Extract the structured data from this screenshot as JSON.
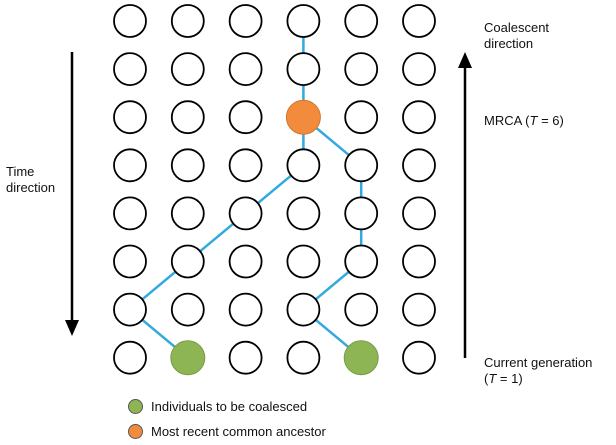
{
  "labels": {
    "time_line1": "Time",
    "time_line2": "direction",
    "coalescent_line1": "Coalescent",
    "coalescent_line2": "direction",
    "mrca_prefix": "MRCA (",
    "mrca_var": "T",
    "mrca_suffix": " = 6)",
    "current_line1": "Current generation",
    "current_open": "(",
    "current_var": "T",
    "current_suffix": " = 1)"
  },
  "legend": [
    {
      "label": "Individuals to be coalesced",
      "color": "#8db554"
    },
    {
      "label": "Most recent common ancestor",
      "color": "#f28c3c"
    }
  ],
  "colors": {
    "lineage": "#33aadd",
    "node_fill": "#ffffff",
    "node_stroke": "#000000",
    "coalesced_fill": "#8db554",
    "mrca_fill": "#f28c3c"
  },
  "grid": {
    "columns": 6,
    "rows": 8,
    "green_nodes": [
      [
        7,
        1
      ],
      [
        7,
        4
      ]
    ],
    "mrca_node": [
      2,
      3
    ],
    "lineages": [
      [
        [
          0,
          3
        ],
        [
          1,
          3
        ],
        [
          2,
          3
        ]
      ],
      [
        [
          7,
          1
        ],
        [
          6,
          0
        ],
        [
          5,
          1
        ],
        [
          4,
          2
        ],
        [
          3,
          3
        ],
        [
          2,
          3
        ]
      ],
      [
        [
          7,
          4
        ],
        [
          6,
          3
        ],
        [
          5,
          4
        ],
        [
          4,
          4
        ],
        [
          3,
          4
        ],
        [
          2,
          3
        ]
      ]
    ]
  }
}
